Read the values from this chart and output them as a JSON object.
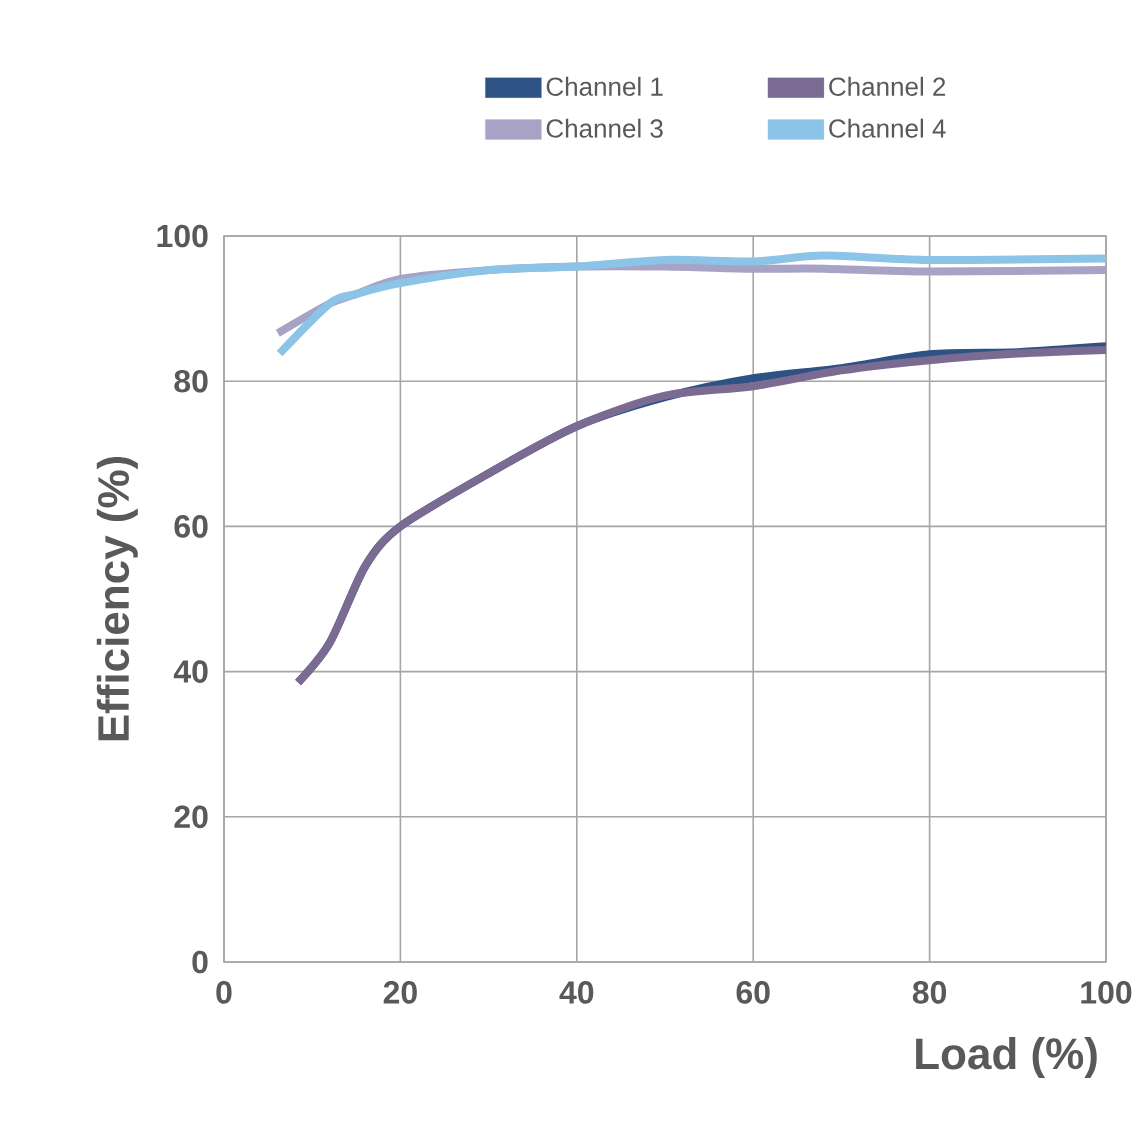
{
  "chart_data": {
    "type": "line",
    "xlabel": "Load (%)",
    "ylabel": "Efficiency (%)",
    "xlim": [
      0,
      100
    ],
    "ylim": [
      0,
      100
    ],
    "xticks": [
      0,
      20,
      40,
      60,
      80,
      100
    ],
    "yticks": [
      0,
      20,
      40,
      60,
      80,
      100
    ],
    "grid": true,
    "legend": "top",
    "marker": "none",
    "line_style": "solid",
    "series": [
      {
        "name": "Channel 1",
        "color": "#2e5283",
        "x": [
          8.4,
          12,
          16,
          20,
          30,
          40,
          50,
          60,
          70,
          80,
          90,
          100
        ],
        "values": [
          38.5,
          44,
          54.5,
          60,
          67.3,
          73.8,
          77.8,
          80.4,
          81.8,
          83.7,
          84,
          84.8
        ]
      },
      {
        "name": "Channel 2",
        "color": "#7b6b93",
        "x": [
          8.4,
          12,
          16,
          20,
          30,
          40,
          50,
          60,
          70,
          80,
          90,
          100
        ],
        "values": [
          38.5,
          44,
          54.5,
          60,
          67.3,
          73.8,
          78,
          79.3,
          81.5,
          82.9,
          83.8,
          84.3
        ]
      },
      {
        "name": "Channel 3",
        "color": "#a7a3c6",
        "x": [
          6.1,
          12,
          15,
          20,
          30,
          40,
          50,
          60,
          68,
          80,
          100
        ],
        "values": [
          86.6,
          90.7,
          92,
          94.1,
          95.3,
          95.8,
          95.8,
          95.5,
          95.5,
          95.1,
          95.3
        ]
      },
      {
        "name": "Channel 4",
        "color": "#8cc4e8",
        "x": [
          6.3,
          12,
          15,
          20,
          30,
          40,
          50,
          60,
          68,
          80,
          100
        ],
        "values": [
          83.8,
          90.7,
          92,
          93.5,
          95.3,
          95.8,
          96.7,
          96.5,
          97.3,
          96.7,
          96.9
        ]
      }
    ]
  }
}
